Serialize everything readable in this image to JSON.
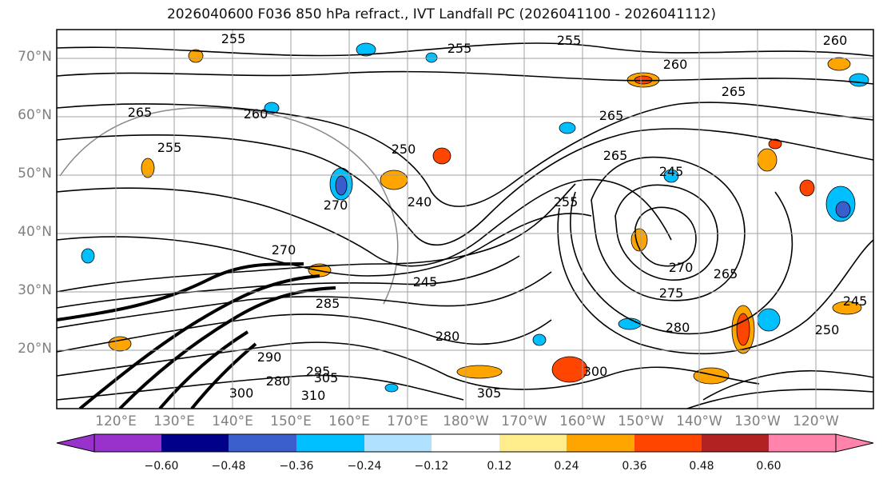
{
  "title": "2026040600 F036 850 hPa refract., IVT Landfall PC (2026041100 - 2026041112)",
  "lat_labels": [
    "70°N",
    "60°N",
    "50°N",
    "40°N",
    "30°N",
    "20°N"
  ],
  "lon_labels": [
    "120°E",
    "130°E",
    "140°E",
    "150°E",
    "160°E",
    "170°E",
    "180°W",
    "170°W",
    "160°W",
    "150°W",
    "140°W",
    "130°W",
    "120°W"
  ],
  "colorbar": {
    "colors": [
      "#9932cc",
      "#00008b",
      "#3a5fcd",
      "#00bfff",
      "#b0e2ff",
      "#ffffff",
      "#ffec8b",
      "#ffa500",
      "#ff4500",
      "#b22222",
      "#ff83aa"
    ],
    "tick_labels": [
      "−0.60",
      "−0.48",
      "−0.36",
      "−0.24",
      "−0.12",
      "0.12",
      "0.24",
      "0.36",
      "0.48",
      "0.60"
    ]
  },
  "contour_labels": [
    "255",
    "255",
    "255",
    "260",
    "260",
    "265",
    "265",
    "260",
    "265",
    "255",
    "250",
    "240",
    "245",
    "255",
    "265",
    "270",
    "270",
    "245",
    "280",
    "280",
    "285",
    "290",
    "295",
    "300",
    "305",
    "310",
    "300",
    "305",
    "275",
    "280",
    "250",
    "245",
    "265",
    "270"
  ]
}
